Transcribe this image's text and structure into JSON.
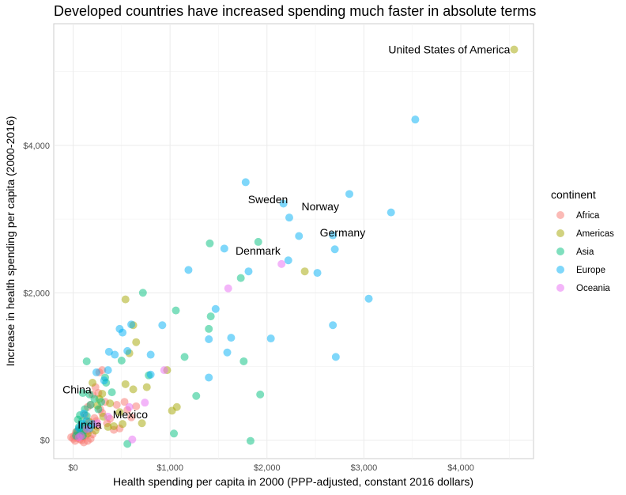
{
  "chart_data": {
    "type": "scatter",
    "title": "Developed countries have increased spending much faster in absolute terms",
    "xlabel": "Health spending per capita in 2000 (PPP-adjusted, constant 2016 dollars)",
    "ylabel": "Increase in health spending per capita (2000-2016)",
    "xlim": [
      -200,
      4750
    ],
    "ylim": [
      -250,
      5650
    ],
    "x_ticks": [
      0,
      1000,
      2000,
      3000,
      4000
    ],
    "x_tick_labels": [
      "$0",
      "$1,000",
      "$2,000",
      "$3,000",
      "$4,000"
    ],
    "y_ticks": [
      0,
      2000,
      4000
    ],
    "y_tick_labels": [
      "$0",
      "$2,000",
      "$4,000"
    ],
    "grid": true,
    "point_alpha": 0.5,
    "legend": {
      "title": "continent",
      "placement": "right",
      "entries": [
        {
          "name": "Africa",
          "color": "#F8766D"
        },
        {
          "name": "Americas",
          "color": "#A3A500"
        },
        {
          "name": "Asia",
          "color": "#00BF7D"
        },
        {
          "name": "Europe",
          "color": "#00B0F6"
        },
        {
          "name": "Oceania",
          "color": "#E76BF3"
        }
      ]
    },
    "series": [
      {
        "name": "Africa",
        "points": [
          [
            -20,
            40
          ],
          [
            0,
            20
          ],
          [
            10,
            60
          ],
          [
            20,
            -10
          ],
          [
            30,
            80
          ],
          [
            40,
            30
          ],
          [
            50,
            120
          ],
          [
            60,
            50
          ],
          [
            70,
            10
          ],
          [
            80,
            90
          ],
          [
            90,
            150
          ],
          [
            100,
            40
          ],
          [
            110,
            -30
          ],
          [
            120,
            100
          ],
          [
            130,
            60
          ],
          [
            140,
            200
          ],
          [
            160,
            130
          ],
          [
            180,
            20
          ],
          [
            200,
            80
          ],
          [
            60,
            140
          ],
          [
            30,
            110
          ],
          [
            90,
            0
          ],
          [
            150,
            -10
          ],
          [
            170,
            250
          ],
          [
            220,
            300
          ],
          [
            250,
            180
          ],
          [
            280,
            420
          ],
          [
            300,
            950
          ],
          [
            150,
            450
          ],
          [
            260,
            640
          ],
          [
            330,
            520
          ],
          [
            350,
            230
          ],
          [
            380,
            290
          ],
          [
            420,
            140
          ],
          [
            450,
            480
          ],
          [
            480,
            160
          ],
          [
            530,
            520
          ],
          [
            560,
            410
          ],
          [
            600,
            310
          ],
          [
            650,
            460
          ],
          [
            200,
            620
          ],
          [
            230,
            720
          ],
          [
            120,
            340
          ],
          [
            270,
            920
          ],
          [
            180,
            480
          ],
          [
            240,
            260
          ],
          [
            300,
            370
          ]
        ]
      },
      {
        "name": "Americas",
        "points": [
          [
            4550,
            5300
          ],
          [
            2390,
            2290
          ],
          [
            540,
            1910
          ],
          [
            620,
            1560
          ],
          [
            580,
            1180
          ],
          [
            650,
            1330
          ],
          [
            970,
            950
          ],
          [
            1020,
            400
          ],
          [
            1070,
            450
          ],
          [
            540,
            760
          ],
          [
            620,
            690
          ],
          [
            760,
            720
          ],
          [
            710,
            230
          ],
          [
            510,
            220
          ],
          [
            420,
            190
          ],
          [
            360,
            180
          ],
          [
            300,
            630
          ],
          [
            250,
            470
          ],
          [
            310,
            320
          ],
          [
            200,
            780
          ],
          [
            120,
            200
          ],
          [
            160,
            250
          ],
          [
            230,
            130
          ],
          [
            380,
            500
          ],
          [
            480,
            380
          ],
          [
            270,
            560
          ],
          [
            150,
            90
          ],
          [
            90,
            160
          ]
        ]
      },
      {
        "name": "Asia",
        "points": [
          [
            1410,
            2670
          ],
          [
            1910,
            2690
          ],
          [
            1730,
            2200
          ],
          [
            720,
            2000
          ],
          [
            1060,
            1760
          ],
          [
            1420,
            1680
          ],
          [
            1400,
            1510
          ],
          [
            1150,
            1130
          ],
          [
            780,
            880
          ],
          [
            1760,
            1070
          ],
          [
            1270,
            600
          ],
          [
            1930,
            620
          ],
          [
            1040,
            90
          ],
          [
            1830,
            -10
          ],
          [
            560,
            -50
          ],
          [
            500,
            1080
          ],
          [
            140,
            1070
          ],
          [
            100,
            640
          ],
          [
            170,
            620
          ],
          [
            330,
            850
          ],
          [
            290,
            520
          ],
          [
            400,
            650
          ],
          [
            50,
            280
          ],
          [
            60,
            180
          ],
          [
            80,
            120
          ],
          [
            100,
            60
          ],
          [
            90,
            250
          ],
          [
            140,
            330
          ],
          [
            70,
            340
          ],
          [
            120,
            420
          ],
          [
            180,
            480
          ],
          [
            220,
            560
          ],
          [
            40,
            120
          ],
          [
            30,
            60
          ],
          [
            110,
            130
          ],
          [
            150,
            180
          ],
          [
            260,
            420
          ],
          [
            340,
            780
          ]
        ]
      },
      {
        "name": "Europe",
        "points": [
          [
            3530,
            4350
          ],
          [
            1780,
            3500
          ],
          [
            2850,
            3340
          ],
          [
            2170,
            3210
          ],
          [
            2230,
            3020
          ],
          [
            3280,
            3090
          ],
          [
            2330,
            2770
          ],
          [
            2680,
            2780
          ],
          [
            1560,
            2600
          ],
          [
            2700,
            2590
          ],
          [
            2220,
            2440
          ],
          [
            1190,
            2310
          ],
          [
            1810,
            2290
          ],
          [
            2520,
            2270
          ],
          [
            1470,
            1780
          ],
          [
            3050,
            1920
          ],
          [
            480,
            1510
          ],
          [
            510,
            1460
          ],
          [
            600,
            1570
          ],
          [
            920,
            1560
          ],
          [
            1630,
            1390
          ],
          [
            1400,
            1370
          ],
          [
            2040,
            1380
          ],
          [
            1590,
            1190
          ],
          [
            2680,
            1560
          ],
          [
            2710,
            1130
          ],
          [
            370,
            1200
          ],
          [
            430,
            1160
          ],
          [
            560,
            1210
          ],
          [
            800,
            1160
          ],
          [
            360,
            950
          ],
          [
            240,
            920
          ],
          [
            320,
            810
          ],
          [
            1400,
            850
          ],
          [
            800,
            890
          ],
          [
            110,
            360
          ],
          [
            60,
            160
          ],
          [
            90,
            220
          ],
          [
            140,
            260
          ],
          [
            200,
            220
          ],
          [
            170,
            160
          ]
        ]
      },
      {
        "name": "Oceania",
        "points": [
          [
            2150,
            2390
          ],
          [
            1600,
            2060
          ],
          [
            940,
            950
          ],
          [
            740,
            510
          ],
          [
            580,
            450
          ],
          [
            610,
            10
          ],
          [
            140,
            150
          ],
          [
            80,
            60
          ],
          [
            60,
            40
          ],
          [
            250,
            230
          ],
          [
            360,
            320
          ]
        ]
      }
    ],
    "annotations": [
      {
        "label": "United States of America",
        "x": 4550,
        "y": 5300,
        "anchor": "end"
      },
      {
        "label": "Sweden",
        "x": 2010,
        "y": 3270,
        "anchor": "middle"
      },
      {
        "label": "Norway",
        "x": 2550,
        "y": 3170,
        "anchor": "middle"
      },
      {
        "label": "Germany",
        "x": 2780,
        "y": 2820,
        "anchor": "middle"
      },
      {
        "label": "Denmark",
        "x": 2180,
        "y": 2570,
        "anchor": "end"
      },
      {
        "label": "China",
        "x": 40,
        "y": 690,
        "anchor": "middle"
      },
      {
        "label": "India",
        "x": 170,
        "y": 210,
        "anchor": "middle"
      },
      {
        "label": "Mexico",
        "x": 590,
        "y": 350,
        "anchor": "middle"
      }
    ]
  }
}
